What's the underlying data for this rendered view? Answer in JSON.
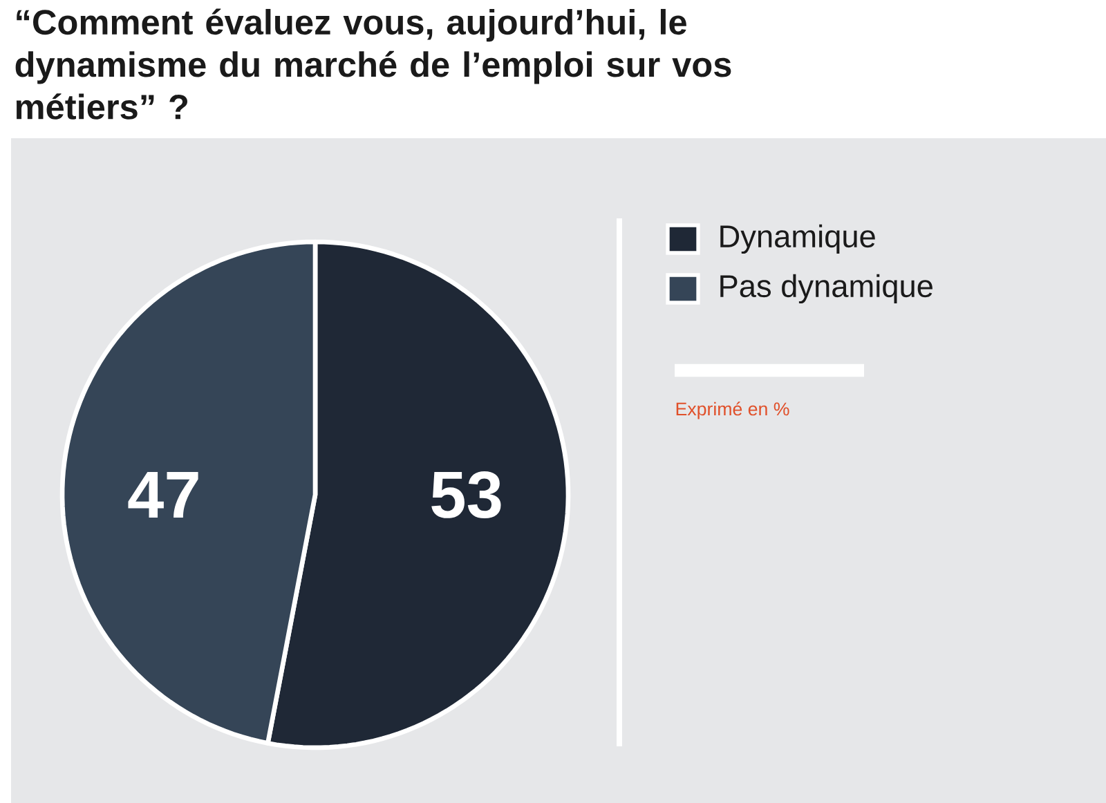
{
  "chart_data": {
    "type": "pie",
    "title": "“Comment évaluez vous, aujourd’hui, le dynamisme du marché de l’emploi sur vos métiers” ?",
    "categories": [
      "Dynamique",
      "Pas dynamique"
    ],
    "values": [
      53,
      47
    ],
    "colors": [
      "#1f2836",
      "#354557"
    ],
    "data_labels": true,
    "legend": "right",
    "annotations": [
      "Exprimé en %"
    ]
  }
}
